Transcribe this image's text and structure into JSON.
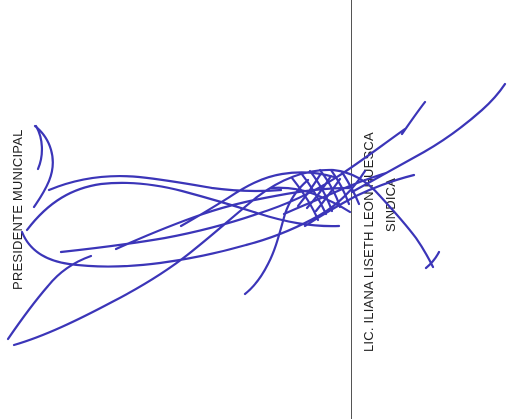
{
  "document": {
    "left_title_cropped": "PRESIDENTE MUNICIPAL",
    "signer_name": "LIC. ILIANA LISETH LEON HUESCA",
    "signer_role": "SINDICA"
  },
  "colors": {
    "ink": "#3b35b8",
    "text": "#1f1f1f",
    "line": "#555555"
  }
}
